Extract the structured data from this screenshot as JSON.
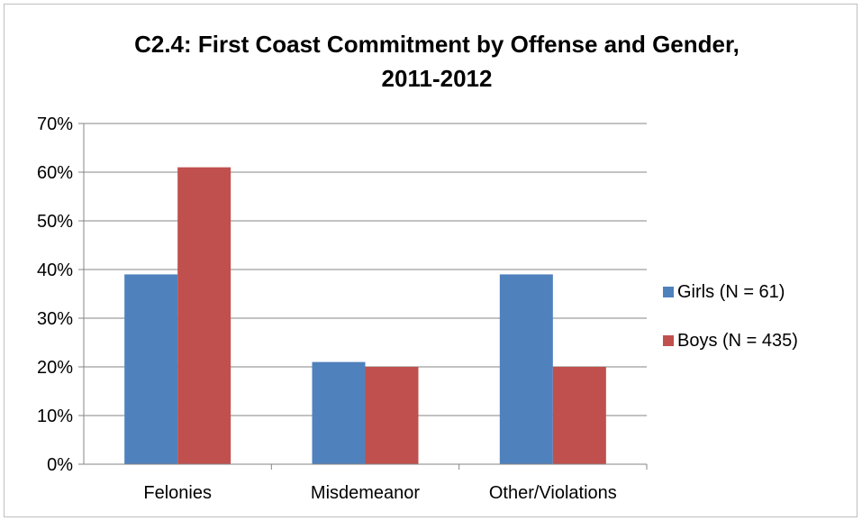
{
  "chart_data": {
    "type": "bar",
    "title": "C2.4: First Coast Commitment by Offense and Gender, 2011-2012",
    "title_lines": [
      "C2.4: First Coast Commitment by Offense and Gender,",
      "2011-2012"
    ],
    "categories": [
      "Felonies",
      "Misdemeanor",
      "Other/Violations"
    ],
    "series": [
      {
        "name": "Girls (N = 61)",
        "values": [
          39,
          21,
          39
        ],
        "color": "#4f81bd"
      },
      {
        "name": "Boys (N = 435)",
        "values": [
          61,
          20,
          20
        ],
        "color": "#c0504d"
      }
    ],
    "ylim": [
      0,
      70
    ],
    "yticks": [
      0,
      10,
      20,
      30,
      40,
      50,
      60,
      70
    ],
    "ytick_labels": [
      "0%",
      "10%",
      "20%",
      "30%",
      "40%",
      "50%",
      "60%",
      "70%"
    ],
    "grid": true,
    "legend_position": "right",
    "xlabel": "",
    "ylabel": ""
  }
}
